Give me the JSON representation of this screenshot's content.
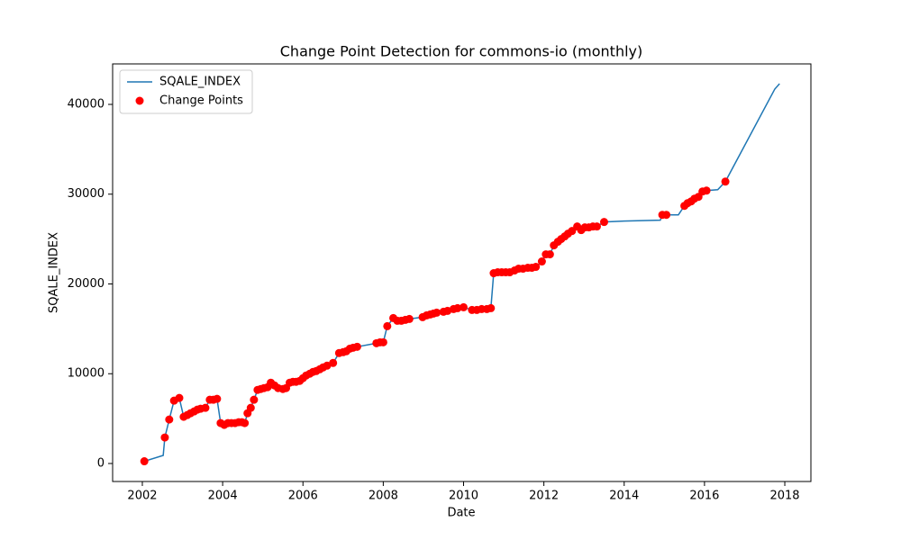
{
  "chart_data": {
    "type": "line",
    "title": "Change Point Detection for commons-io (monthly)",
    "xlabel": "Date",
    "ylabel": "SQALE_INDEX",
    "xlim": [
      2001.26,
      2018.65
    ],
    "xticks": [
      2002,
      2004,
      2006,
      2008,
      2010,
      2012,
      2014,
      2016,
      2018
    ],
    "ylim": [
      -2005,
      44511
    ],
    "yticks": [
      0,
      10000,
      20000,
      30000,
      40000
    ],
    "grid": false,
    "legend": "upper left",
    "series": [
      {
        "name": "SQALE_INDEX",
        "type": "line",
        "color": "#1f77b4",
        "x": [
          2002.05,
          2002.52,
          2002.56,
          2002.67,
          2002.79,
          2002.92,
          2003.03,
          2003.12,
          2003.2,
          2003.29,
          2003.37,
          2003.45,
          2003.57,
          2003.68,
          2003.77,
          2003.86,
          2003.95,
          2004.04,
          2004.13,
          2004.22,
          2004.31,
          2004.4,
          2004.48,
          2004.55,
          2004.62,
          2004.7,
          2004.78,
          2004.87,
          2004.95,
          2005.03,
          2005.12,
          2005.2,
          2005.29,
          2005.38,
          2005.5,
          2005.58,
          2005.67,
          2005.75,
          2005.83,
          2005.92,
          2006.0,
          2006.08,
          2006.17,
          2006.25,
          2006.33,
          2006.42,
          2006.5,
          2006.6,
          2006.75,
          2006.9,
          2007.0,
          2007.08,
          2007.17,
          2007.25,
          2007.35,
          2007.83,
          2007.92,
          2008.0,
          2008.1,
          2008.25,
          2008.35,
          2008.45,
          2008.55,
          2008.65,
          2008.98,
          2009.08,
          2009.17,
          2009.25,
          2009.33,
          2009.5,
          2009.6,
          2009.75,
          2009.85,
          2010.0,
          2010.21,
          2010.33,
          2010.45,
          2010.58,
          2010.68,
          2010.75,
          2010.85,
          2010.95,
          2011.05,
          2011.15,
          2011.27,
          2011.37,
          2011.48,
          2011.6,
          2011.7,
          2011.8,
          2011.95,
          2012.05,
          2012.15,
          2012.25,
          2012.35,
          2012.43,
          2012.52,
          2012.6,
          2012.7,
          2012.83,
          2012.93,
          2013.02,
          2013.12,
          2013.22,
          2013.32,
          2013.5,
          2014.0,
          2014.9,
          2014.95,
          2015.05,
          2015.35,
          2015.5,
          2015.58,
          2015.67,
          2015.75,
          2015.85,
          2015.95,
          2016.05,
          2016.33,
          2016.52,
          2017.75,
          2017.87
        ],
        "values": [
          250,
          900,
          2900,
          4900,
          7000,
          7300,
          5200,
          5400,
          5600,
          5800,
          6000,
          6100,
          6200,
          7100,
          7100,
          7200,
          4500,
          4300,
          4500,
          4500,
          4500,
          4600,
          4600,
          4500,
          5600,
          6200,
          7100,
          8200,
          8300,
          8400,
          8500,
          9000,
          8700,
          8400,
          8300,
          8400,
          9000,
          9100,
          9100,
          9200,
          9500,
          9800,
          10000,
          10200,
          10300,
          10500,
          10700,
          10900,
          11200,
          12300,
          12400,
          12500,
          12800,
          12900,
          13000,
          13400,
          13500,
          13500,
          15300,
          16200,
          15900,
          15900,
          16000,
          16100,
          16300,
          16500,
          16600,
          16700,
          16800,
          16900,
          17000,
          17200,
          17300,
          17400,
          17100,
          17100,
          17200,
          17200,
          17300,
          21200,
          21300,
          21300,
          21300,
          21300,
          21500,
          21700,
          21700,
          21800,
          21800,
          21900,
          22500,
          23300,
          23300,
          24300,
          24700,
          25000,
          25300,
          25600,
          25900,
          26400,
          26000,
          26300,
          26300,
          26400,
          26400,
          26900,
          27000,
          27100,
          27700,
          27700,
          27700,
          28700,
          29000,
          29200,
          29500,
          29700,
          30300,
          30400,
          30500,
          31400,
          41700,
          42300
        ]
      },
      {
        "name": "Change Points",
        "type": "scatter",
        "color": "#ff0000",
        "x": [
          2002.05,
          2002.56,
          2002.67,
          2002.79,
          2002.92,
          2003.03,
          2003.12,
          2003.2,
          2003.29,
          2003.37,
          2003.45,
          2003.57,
          2003.68,
          2003.77,
          2003.86,
          2003.95,
          2004.04,
          2004.13,
          2004.22,
          2004.31,
          2004.4,
          2004.48,
          2004.55,
          2004.62,
          2004.7,
          2004.78,
          2004.87,
          2004.95,
          2005.03,
          2005.12,
          2005.2,
          2005.29,
          2005.38,
          2005.5,
          2005.58,
          2005.67,
          2005.75,
          2005.83,
          2005.92,
          2006.0,
          2006.08,
          2006.17,
          2006.25,
          2006.33,
          2006.42,
          2006.5,
          2006.6,
          2006.75,
          2006.9,
          2007.0,
          2007.08,
          2007.17,
          2007.25,
          2007.35,
          2007.83,
          2007.92,
          2008.0,
          2008.1,
          2008.25,
          2008.35,
          2008.45,
          2008.55,
          2008.65,
          2008.98,
          2009.08,
          2009.17,
          2009.25,
          2009.33,
          2009.5,
          2009.6,
          2009.75,
          2009.85,
          2010.0,
          2010.21,
          2010.33,
          2010.45,
          2010.58,
          2010.68,
          2010.75,
          2010.85,
          2010.95,
          2011.05,
          2011.15,
          2011.27,
          2011.37,
          2011.48,
          2011.6,
          2011.7,
          2011.8,
          2011.95,
          2012.05,
          2012.15,
          2012.25,
          2012.35,
          2012.43,
          2012.52,
          2012.6,
          2012.7,
          2012.83,
          2012.93,
          2013.02,
          2013.12,
          2013.22,
          2013.32,
          2013.5,
          2014.95,
          2015.05,
          2015.5,
          2015.58,
          2015.67,
          2015.75,
          2015.85,
          2015.95,
          2016.05,
          2016.52
        ],
        "values": [
          250,
          2900,
          4900,
          7000,
          7300,
          5200,
          5400,
          5600,
          5800,
          6000,
          6100,
          6200,
          7100,
          7100,
          7200,
          4500,
          4300,
          4500,
          4500,
          4500,
          4600,
          4600,
          4500,
          5600,
          6200,
          7100,
          8200,
          8300,
          8400,
          8500,
          9000,
          8700,
          8400,
          8300,
          8400,
          9000,
          9100,
          9100,
          9200,
          9500,
          9800,
          10000,
          10200,
          10300,
          10500,
          10700,
          10900,
          11200,
          12300,
          12400,
          12500,
          12800,
          12900,
          13000,
          13400,
          13500,
          13500,
          15300,
          16200,
          15900,
          15900,
          16000,
          16100,
          16300,
          16500,
          16600,
          16700,
          16800,
          16900,
          17000,
          17200,
          17300,
          17400,
          17100,
          17100,
          17200,
          17200,
          17300,
          21200,
          21300,
          21300,
          21300,
          21300,
          21500,
          21700,
          21700,
          21800,
          21800,
          21900,
          22500,
          23300,
          23300,
          24300,
          24700,
          25000,
          25300,
          25600,
          25900,
          26400,
          26000,
          26300,
          26300,
          26400,
          26400,
          26900,
          27700,
          27700,
          28700,
          29000,
          29200,
          29500,
          29700,
          30300,
          30400,
          31400
        ]
      }
    ]
  }
}
